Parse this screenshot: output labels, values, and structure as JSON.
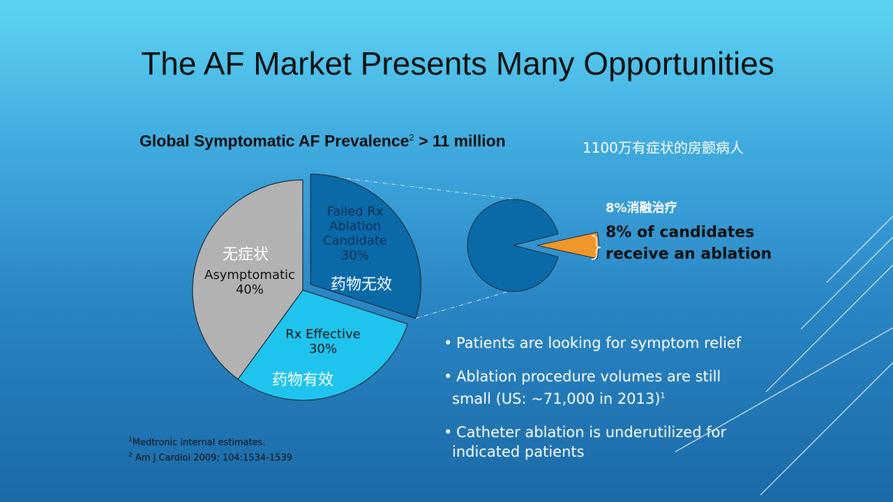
{
  "title": "The AF Market Presents Many Opportunities",
  "subtitle": {
    "text": "Global Symptomatic AF Prevalence",
    "sup": "2",
    "tail": " > 11 million",
    "cn": "1100万有症状的房颤病人"
  },
  "chart_data": [
    {
      "type": "pie",
      "labels": [
        "Failed Rx Ablation Candidate",
        "Rx Effective",
        "Asymptomatic"
      ],
      "values": [
        30,
        30,
        40
      ],
      "value_labels": [
        "30%",
        "30%",
        "40%"
      ],
      "cn_labels": [
        "药物无效",
        "药物有效",
        "无症状"
      ],
      "exploded": "Failed Rx Ablation Candidate",
      "colors": [
        "#0a6aa8",
        "#1fc4ee",
        "#b2b2b2"
      ]
    },
    {
      "type": "pie",
      "values": [
        92,
        8
      ],
      "colors": [
        "#0a6aa8",
        "#f0962a"
      ],
      "exploded_slice_index": 1
    }
  ],
  "ablation": {
    "cn": "8%消融治疗",
    "line1": "8% of candidates",
    "line2": "receive an ablation"
  },
  "bullets": [
    {
      "dot": "•",
      "line1": "Patients are looking for symptom relief"
    },
    {
      "dot": "•",
      "line1": "Ablation procedure volumes are still",
      "line2": "small (US: ~71,000 in 2013)",
      "sup": "1"
    },
    {
      "dot": "•",
      "line1": "Catheter ablation is underutilized for",
      "line2": "indicated patients"
    }
  ],
  "footnotes": [
    {
      "sup": "1",
      "text": "Medtronic internal estimates."
    },
    {
      "sup": "2",
      "text": "Am J Cardiol 2009; 104:1534-1539"
    }
  ]
}
